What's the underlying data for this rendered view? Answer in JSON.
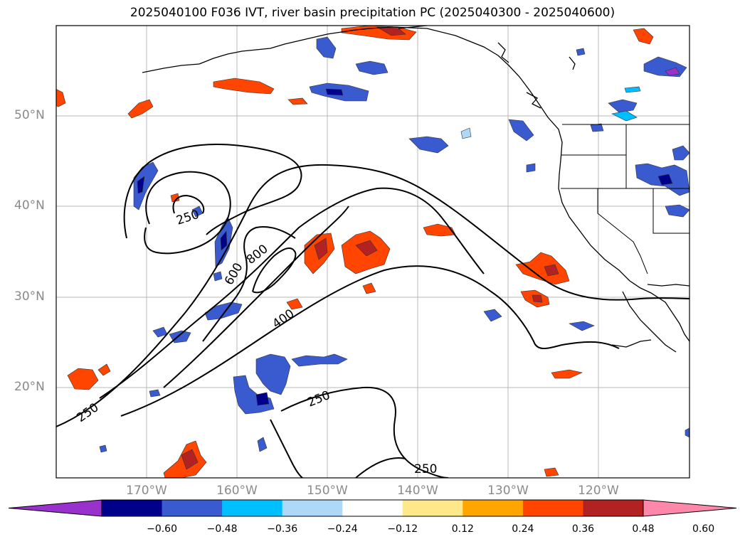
{
  "title": "2025040100 F036 IVT, river basin precipitation PC (2025040300 - 2025040600)",
  "map": {
    "lon_range": [
      -180,
      -110
    ],
    "lat_range": [
      10,
      60
    ],
    "lat_labels": [
      "50°N",
      "40°N",
      "30°N",
      "20°N"
    ],
    "lon_labels": [
      "170°W",
      "160°W",
      "150°W",
      "140°W",
      "130°W",
      "120°W"
    ],
    "contour_labels": [
      "250",
      "800",
      "600",
      "400",
      "250",
      "250",
      "250"
    ]
  },
  "colorbar": {
    "ticks": [
      "−0.60",
      "−0.48",
      "−0.36",
      "−0.24",
      "−0.12",
      "0.12",
      "0.24",
      "0.36",
      "0.48",
      "0.60"
    ],
    "colors": [
      "#9932cc",
      "#00008b",
      "#3a5bd0",
      "#00bfff",
      "#add8f7",
      "#ffffff",
      "#ffe88a",
      "#ffa500",
      "#ff4500",
      "#b22222",
      "#ff88aa"
    ]
  }
}
